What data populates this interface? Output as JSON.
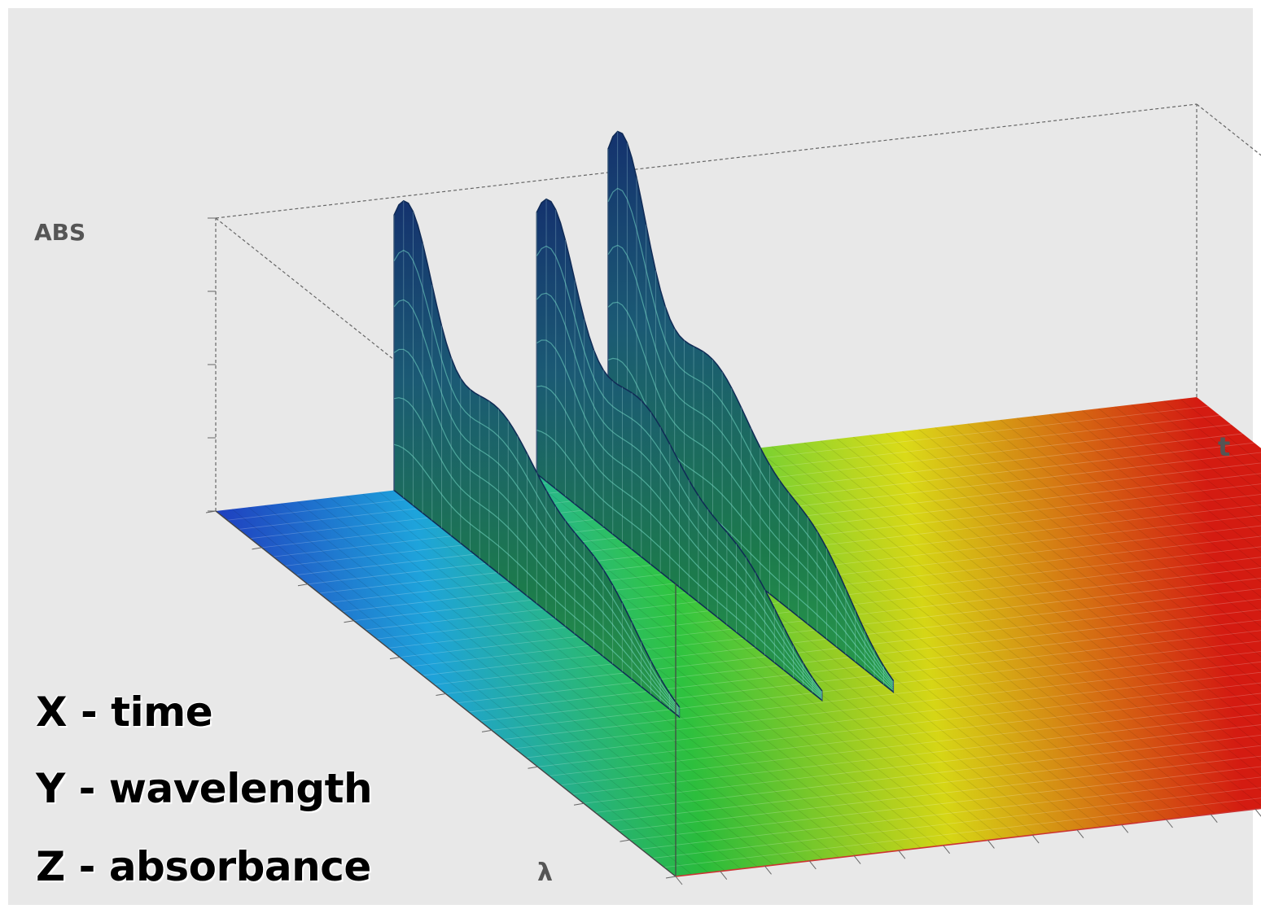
{
  "figure": {
    "legend_lines": [
      "X - time",
      "Y - wavelength",
      "Z - absorbance"
    ]
  },
  "chart_data": {
    "type": "surface3d",
    "title": "",
    "axes": {
      "time": {
        "name": "t",
        "range": [
          0,
          11
        ]
      },
      "wavelength": {
        "name": "λ",
        "range": [
          200,
          400
        ]
      },
      "absorbance": {
        "name": "ABS",
        "range": [
          0,
          1
        ]
      }
    },
    "colorscale": [
      "#1f3fbf",
      "#1aa3dc",
      "#2ecc40",
      "#e8e817",
      "#e61d12"
    ],
    "peaks": [
      {
        "time": 2.0,
        "absorbance_max": 1.0
      },
      {
        "time": 3.6,
        "absorbance_max": 0.95
      },
      {
        "time": 4.4,
        "absorbance_max": 1.15
      }
    ],
    "background_color": "#e8e8e8"
  }
}
